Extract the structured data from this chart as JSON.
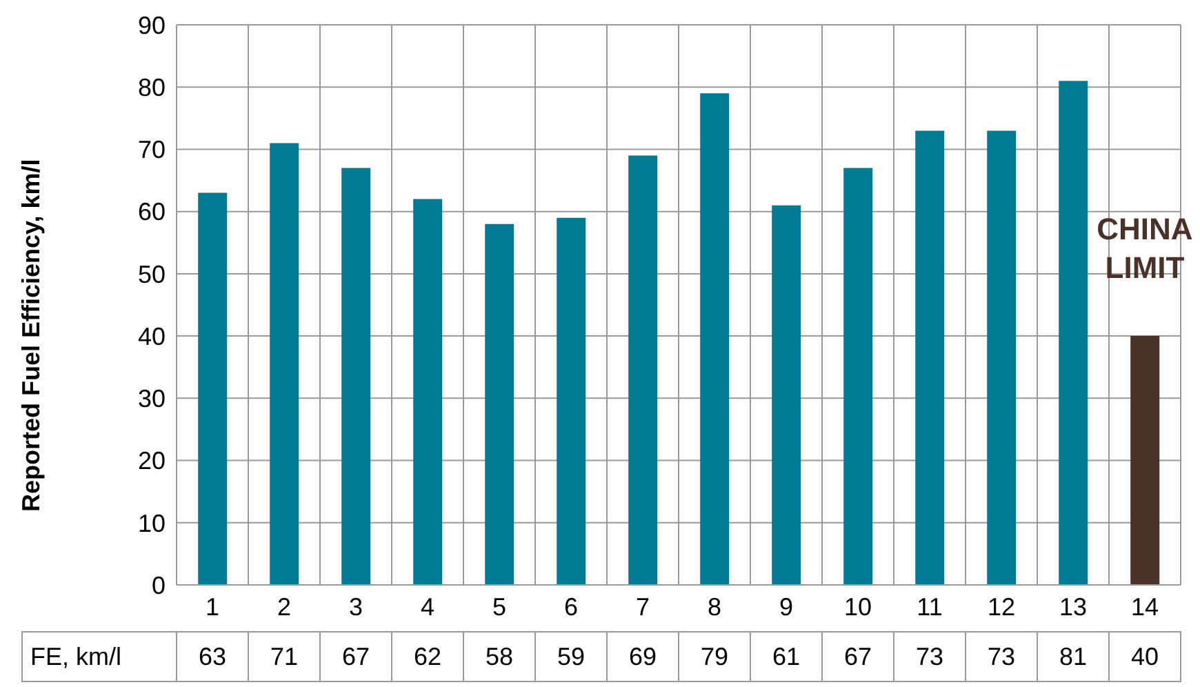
{
  "chart_data": {
    "type": "bar",
    "ylabel": "Reported Fuel Efficiency, km/l",
    "categories": [
      "1",
      "2",
      "3",
      "4",
      "5",
      "6",
      "7",
      "8",
      "9",
      "10",
      "11",
      "12",
      "13",
      "14"
    ],
    "series": [
      {
        "name": "FE, km/l",
        "colors": [
          "#007b93",
          "#007b93",
          "#007b93",
          "#007b93",
          "#007b93",
          "#007b93",
          "#007b93",
          "#007b93",
          "#007b93",
          "#007b93",
          "#007b93",
          "#007b93",
          "#007b93",
          "#4a3228"
        ],
        "values": [
          63,
          71,
          67,
          62,
          58,
          59,
          69,
          79,
          61,
          67,
          73,
          73,
          81,
          40
        ]
      }
    ],
    "ylim": [
      0,
      90
    ],
    "yticks": [
      0,
      10,
      20,
      30,
      40,
      50,
      60,
      70,
      80,
      90
    ],
    "grid": true,
    "data_labels": true,
    "annotations": [
      {
        "text": "CHINA LIMIT",
        "x": "14",
        "y": 40
      }
    ]
  }
}
